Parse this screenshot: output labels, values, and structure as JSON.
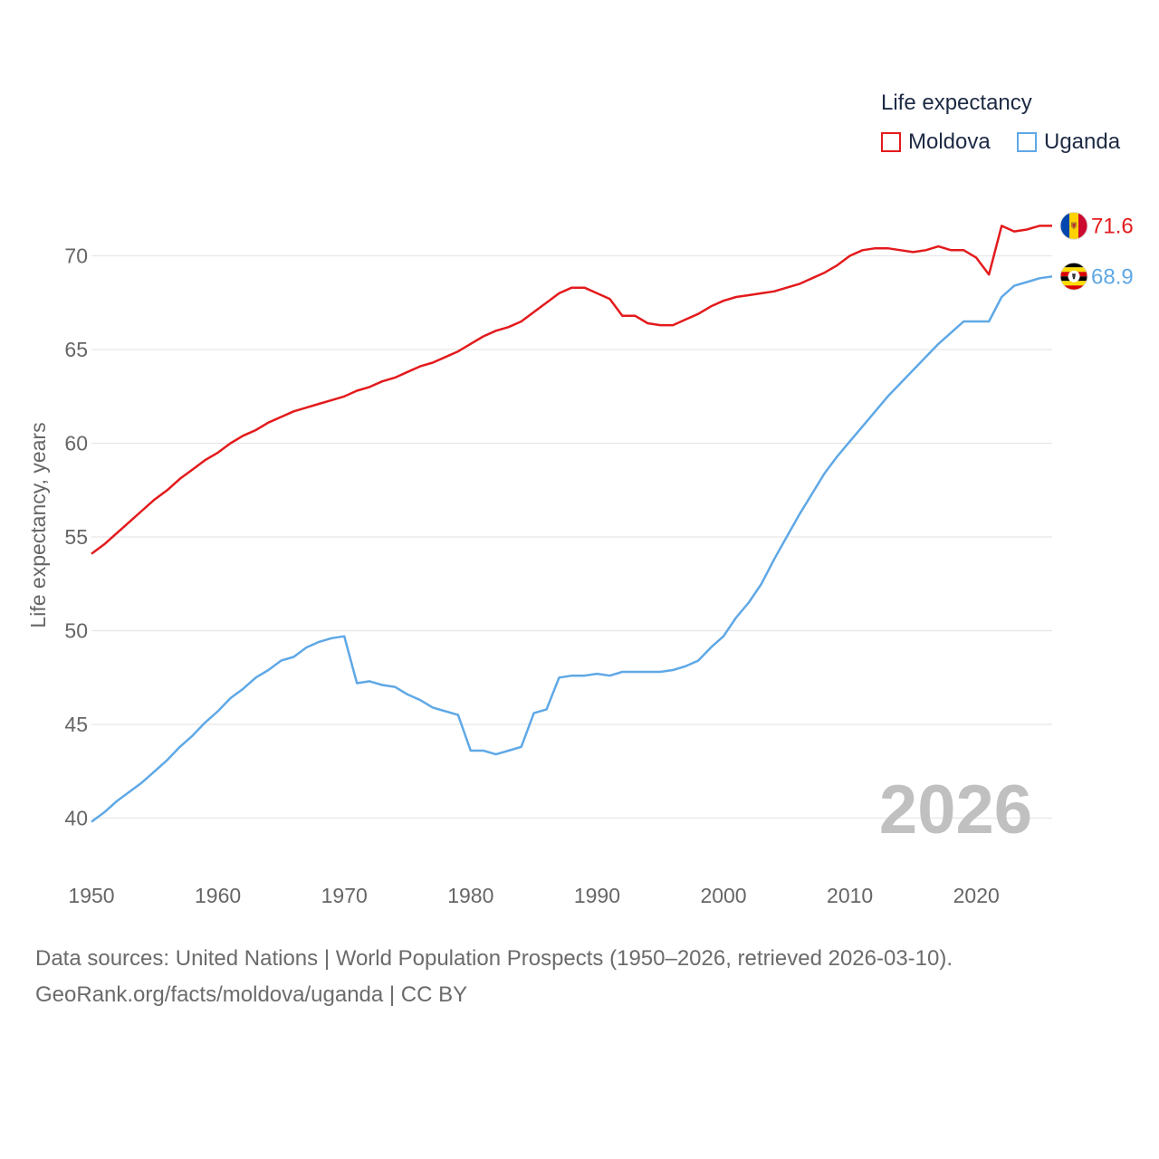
{
  "legend": {
    "title": "Life expectancy",
    "items": [
      {
        "label": "Moldova",
        "color": "#e31a1c"
      },
      {
        "label": "Uganda",
        "color": "#5fa8e6"
      }
    ]
  },
  "source": {
    "line1": "Data sources: United Nations | World Population Prospects (1950–2026, retrieved 2026-03-10).",
    "line2": "GeoRank.org/facts/moldova/uganda | CC BY"
  },
  "chart_data": {
    "type": "line",
    "title": "Life expectancy",
    "xlabel": "",
    "ylabel": "Life expectancy, years",
    "xlim": [
      1950,
      2026
    ],
    "ylim": [
      38.4,
      74
    ],
    "xticks": [
      1950,
      1960,
      1970,
      1980,
      1990,
      2000,
      2010,
      2020
    ],
    "yticks": [
      40,
      45,
      50,
      55,
      60,
      65,
      70
    ],
    "grid": true,
    "year_watermark": "2026",
    "x": [
      1950,
      1951,
      1952,
      1953,
      1954,
      1955,
      1956,
      1957,
      1958,
      1959,
      1960,
      1961,
      1962,
      1963,
      1964,
      1965,
      1966,
      1967,
      1968,
      1969,
      1970,
      1971,
      1972,
      1973,
      1974,
      1975,
      1976,
      1977,
      1978,
      1979,
      1980,
      1981,
      1982,
      1983,
      1984,
      1985,
      1986,
      1987,
      1988,
      1989,
      1990,
      1991,
      1992,
      1993,
      1994,
      1995,
      1996,
      1997,
      1998,
      1999,
      2000,
      2001,
      2002,
      2003,
      2004,
      2005,
      2006,
      2007,
      2008,
      2009,
      2010,
      2011,
      2012,
      2013,
      2014,
      2015,
      2016,
      2017,
      2018,
      2019,
      2020,
      2021,
      2022,
      2023,
      2024,
      2025,
      2026
    ],
    "series": [
      {
        "name": "Moldova",
        "color": "#e31a1c",
        "end_label": "71.6",
        "flag": "moldova-flag",
        "values": [
          54.1,
          54.6,
          55.2,
          55.8,
          56.4,
          57.0,
          57.5,
          58.1,
          58.6,
          59.1,
          59.5,
          60.0,
          60.4,
          60.7,
          61.1,
          61.4,
          61.7,
          61.9,
          62.1,
          62.3,
          62.5,
          62.8,
          63.0,
          63.3,
          63.5,
          63.8,
          64.1,
          64.3,
          64.6,
          64.9,
          65.3,
          65.7,
          66.0,
          66.2,
          66.5,
          67.0,
          67.5,
          68.0,
          68.3,
          68.3,
          68.0,
          67.7,
          66.8,
          66.8,
          66.4,
          66.3,
          66.3,
          66.6,
          66.9,
          67.3,
          67.6,
          67.8,
          67.9,
          68.0,
          68.1,
          68.3,
          68.5,
          68.8,
          69.1,
          69.5,
          70.0,
          70.3,
          70.4,
          70.4,
          70.3,
          70.2,
          70.3,
          70.5,
          70.3,
          70.3,
          69.9,
          69.0,
          71.6,
          71.3,
          71.4,
          71.6,
          71.6
        ]
      },
      {
        "name": "Uganda",
        "color": "#5fa8e6",
        "end_label": "68.9",
        "flag": "uganda-flag",
        "values": [
          39.8,
          40.3,
          40.9,
          41.4,
          41.9,
          42.5,
          43.1,
          43.8,
          44.4,
          45.1,
          45.7,
          46.4,
          46.9,
          47.5,
          47.9,
          48.4,
          48.6,
          49.1,
          49.4,
          49.6,
          49.7,
          47.2,
          47.3,
          47.1,
          47.0,
          46.6,
          46.3,
          45.9,
          45.7,
          45.5,
          43.6,
          43.6,
          43.4,
          43.6,
          43.8,
          45.6,
          45.8,
          47.5,
          47.6,
          47.6,
          47.7,
          47.6,
          47.8,
          47.8,
          47.8,
          47.8,
          47.9,
          48.1,
          48.4,
          49.1,
          49.7,
          50.7,
          51.5,
          52.5,
          53.8,
          55.0,
          56.2,
          57.3,
          58.4,
          59.3,
          60.1,
          60.9,
          61.7,
          62.5,
          63.2,
          63.9,
          64.6,
          65.3,
          65.9,
          66.5,
          66.5,
          66.5,
          67.8,
          68.4,
          68.6,
          68.8,
          68.9
        ]
      }
    ]
  }
}
